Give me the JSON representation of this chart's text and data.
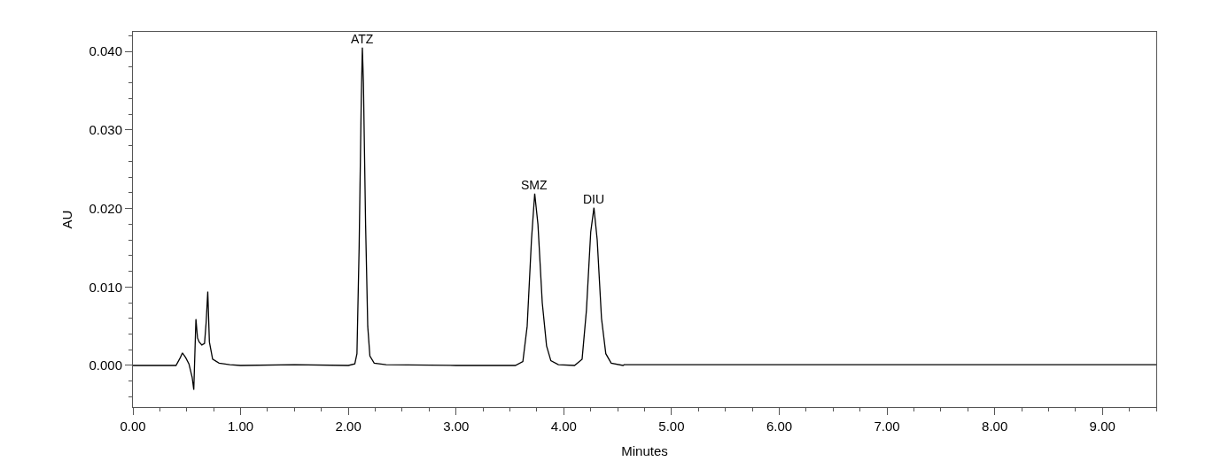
{
  "chart_data": {
    "type": "line",
    "xlabel": "Minutes",
    "ylabel": "AU",
    "x": [
      0,
      0.4,
      0.44,
      0.46,
      0.49,
      0.52,
      0.55,
      0.565,
      0.585,
      0.6,
      0.615,
      0.64,
      0.665,
      0.68,
      0.695,
      0.71,
      0.74,
      0.8,
      0.9,
      1.0,
      1.5,
      2.0,
      2.06,
      2.08,
      2.1,
      2.12,
      2.13,
      2.14,
      2.16,
      2.18,
      2.2,
      2.24,
      2.35,
      3.0,
      3.55,
      3.62,
      3.66,
      3.7,
      3.73,
      3.76,
      3.8,
      3.84,
      3.88,
      3.95,
      4.1,
      4.17,
      4.21,
      4.25,
      4.28,
      4.31,
      4.35,
      4.39,
      4.44,
      4.55,
      4.56,
      6.0,
      7.0,
      9.5
    ],
    "series": [
      {
        "color": "#000000",
        "values": [
          0,
          0,
          0.001,
          0.0016,
          0.001,
          0.0002,
          -0.0015,
          -0.0031,
          0.0059,
          0.0035,
          0.003,
          0.0026,
          0.0028,
          0.0055,
          0.0094,
          0.003,
          0.0008,
          0.0003,
          0.0001,
          0,
          0.0001,
          0,
          0.0002,
          0.0015,
          0.015,
          0.034,
          0.0405,
          0.036,
          0.018,
          0.005,
          0.0012,
          0.0003,
          0.0001,
          0,
          0,
          0.0005,
          0.005,
          0.016,
          0.0219,
          0.018,
          0.008,
          0.0025,
          0.0006,
          0.0001,
          0,
          0.0008,
          0.007,
          0.017,
          0.0201,
          0.016,
          0.006,
          0.0015,
          0.0003,
          0,
          0.0001,
          0.0001,
          0.0001,
          0.0001
        ]
      }
    ],
    "annotations": [
      {
        "text": "ATZ",
        "x": 2.13,
        "y": 0.0405
      },
      {
        "text": "SMZ",
        "x": 3.73,
        "y": 0.0219
      },
      {
        "text": "DIU",
        "x": 4.28,
        "y": 0.0201
      }
    ],
    "xlim": [
      0,
      9.5
    ],
    "xticks": [
      {
        "value": 0,
        "label": "0.00"
      },
      {
        "value": 1,
        "label": "1.00"
      },
      {
        "value": 2,
        "label": "2.00"
      },
      {
        "value": 3,
        "label": "3.00"
      },
      {
        "value": 4,
        "label": "4.00"
      },
      {
        "value": 5,
        "label": "5.00"
      },
      {
        "value": 6,
        "label": "6.00"
      },
      {
        "value": 7,
        "label": "7.00"
      },
      {
        "value": 8,
        "label": "8.00"
      },
      {
        "value": 9,
        "label": "9.00"
      }
    ],
    "ylim": [
      -0.0053,
      0.0425
    ],
    "yticks": [
      {
        "value": 0,
        "label": "0.000"
      },
      {
        "value": 0.01,
        "label": "0.010"
      },
      {
        "value": 0.02,
        "label": "0.020"
      },
      {
        "value": 0.03,
        "label": "0.030"
      },
      {
        "value": 0.04,
        "label": "0.040"
      }
    ],
    "marker": "none",
    "line_style": "solid"
  }
}
